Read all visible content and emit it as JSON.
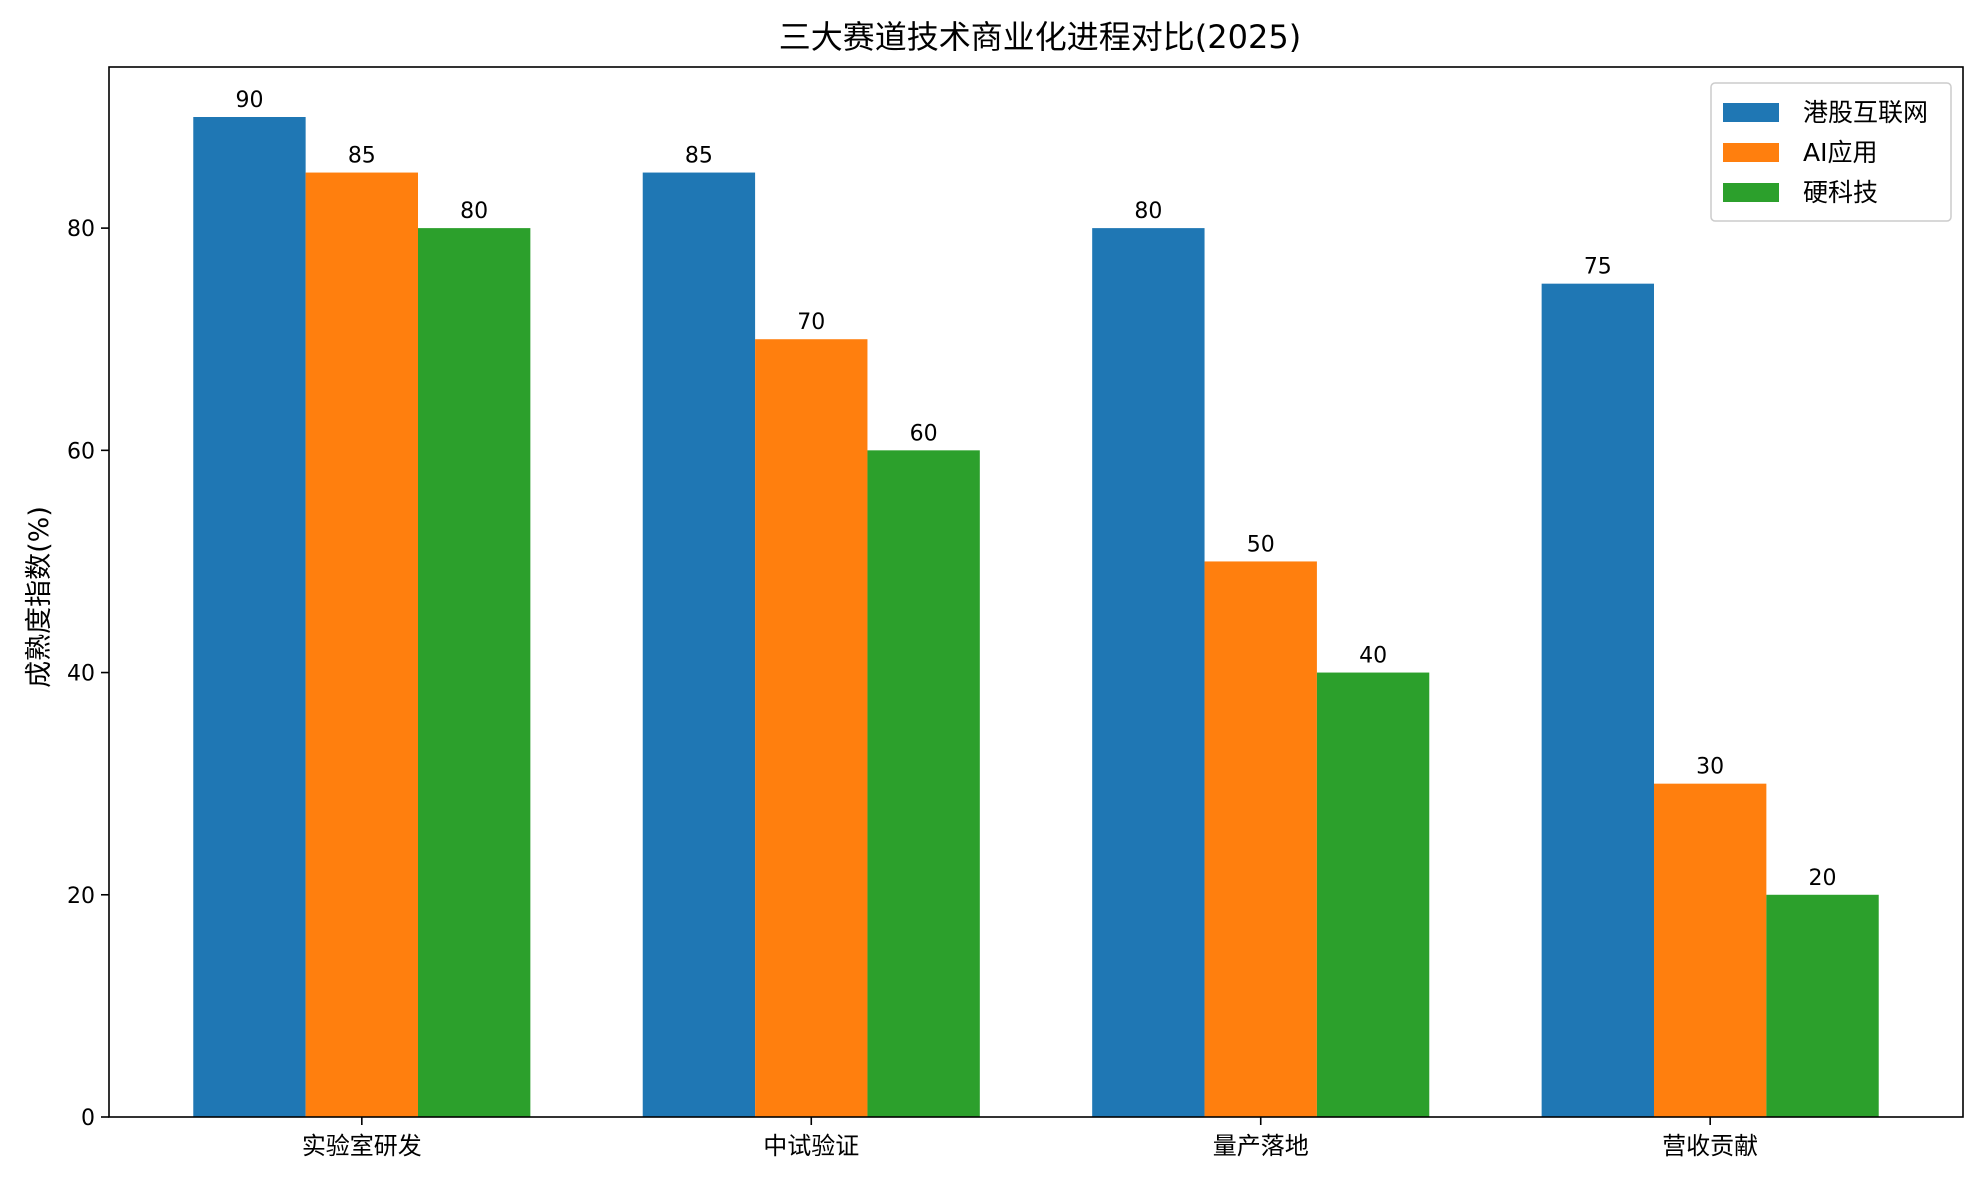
{
  "chart_data": {
    "type": "bar",
    "title": "三大赛道技术商业化进程对比(2025)",
    "xlabel": "",
    "ylabel": "成熟度指数(%)",
    "ylim": [
      0,
      94.5
    ],
    "yticks": [
      0,
      20,
      40,
      60,
      80
    ],
    "categories": [
      "实验室研发",
      "中试验证",
      "量产落地",
      "营收贡献"
    ],
    "series": [
      {
        "name": "港股互联网",
        "color": "#1f77b4",
        "values": [
          90,
          85,
          80,
          75
        ]
      },
      {
        "name": "AI应用",
        "color": "#ff7f0e",
        "values": [
          85,
          70,
          50,
          30
        ]
      },
      {
        "name": "硬科技",
        "color": "#2ca02c",
        "values": [
          80,
          60,
          40,
          20
        ]
      }
    ],
    "grid": false,
    "legend_position": "top-right",
    "data_labels": true
  }
}
